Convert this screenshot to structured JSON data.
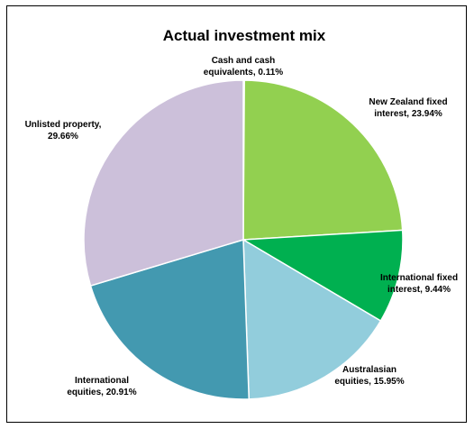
{
  "chart_data": {
    "type": "pie",
    "title": "Actual investment mix",
    "slices": [
      {
        "label_lines": [
          "Cash and cash",
          "equivalents, 0.11%"
        ],
        "value": 0.11,
        "color": "#8ab04a"
      },
      {
        "label_lines": [
          "New Zealand fixed",
          "interest, 23.94%"
        ],
        "value": 23.94,
        "color": "#92d050"
      },
      {
        "label_lines": [
          "International fixed",
          "interest, 9.44%"
        ],
        "value": 9.44,
        "color": "#00b050"
      },
      {
        "label_lines": [
          "Australasian",
          "equities, 15.95%"
        ],
        "value": 15.95,
        "color": "#92cddc"
      },
      {
        "label_lines": [
          "International",
          "equities, 20.91%"
        ],
        "value": 20.91,
        "color": "#4399b0"
      },
      {
        "label_lines": [
          "Unlisted property,",
          "29.66%"
        ],
        "value": 29.66,
        "color": "#ccc0da"
      }
    ]
  }
}
